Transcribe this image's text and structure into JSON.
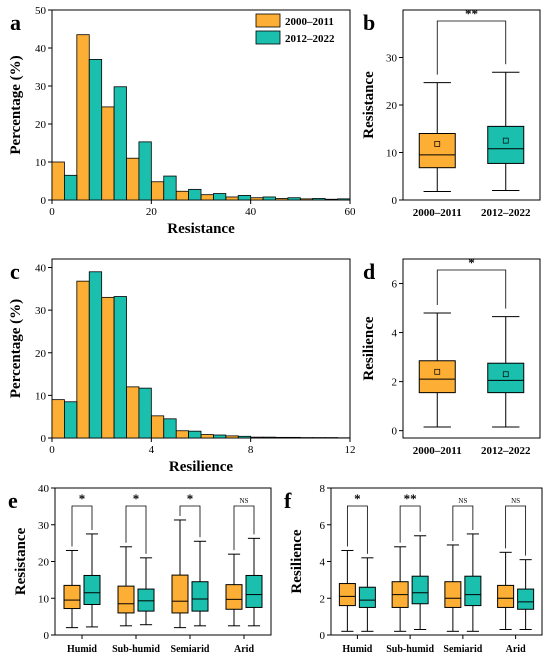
{
  "colors": {
    "p1": "#FDAE34",
    "p2": "#1ABFAE",
    "stroke": "#000000"
  },
  "legend": [
    "2000–2011",
    "2012–2022"
  ],
  "chart_data": [
    {
      "id": "a",
      "type": "bar",
      "panel_label": "a",
      "xlabel": "Resistance",
      "ylabel": "Percentage (%)",
      "xlim": [
        0,
        60
      ],
      "ylim": [
        0,
        50
      ],
      "xticks": [
        0,
        20,
        40,
        60
      ],
      "yticks": [
        0,
        10,
        20,
        30,
        40,
        50
      ],
      "bin_width": 2.5,
      "bins": [
        0,
        5,
        10,
        15,
        20,
        25,
        30,
        35,
        40,
        45,
        50,
        55
      ],
      "series": [
        {
          "name": "2000–2011",
          "values": [
            10,
            43.5,
            24.5,
            11,
            4.8,
            2.3,
            1.4,
            0.8,
            0.6,
            0.4,
            0.3,
            0.2
          ]
        },
        {
          "name": "2012–2022",
          "values": [
            6.5,
            37,
            29.8,
            15.3,
            6.3,
            2.8,
            1.7,
            1.2,
            0.8,
            0.6,
            0.4,
            0.3
          ]
        }
      ],
      "legend_position": "top-right"
    },
    {
      "id": "b",
      "type": "box",
      "panel_label": "b",
      "ylabel": "Resistance",
      "ylim": [
        0,
        40
      ],
      "yticks": [
        0,
        10,
        20,
        30
      ],
      "categories": [
        "2000–2011",
        "2012–2022"
      ],
      "boxes": [
        {
          "whisker_low": 1.8,
          "q1": 6.8,
          "median": 9.5,
          "q3": 14,
          "whisker_high": 24.7,
          "mean": 11.8
        },
        {
          "whisker_low": 2,
          "q1": 7.7,
          "median": 10.8,
          "q3": 15.5,
          "whisker_high": 26.9,
          "mean": 12.5
        }
      ],
      "significance": "**"
    },
    {
      "id": "c",
      "type": "bar",
      "panel_label": "c",
      "xlabel": "Resilience",
      "ylabel": "Percentage (%)",
      "xlim": [
        0,
        12
      ],
      "ylim": [
        0,
        42
      ],
      "xticks": [
        0,
        4,
        8,
        12
      ],
      "yticks": [
        0,
        10,
        20,
        30,
        40
      ],
      "bin_width": 0.5,
      "bins": [
        0,
        1,
        2,
        3,
        4,
        5,
        6,
        7,
        8,
        9,
        10,
        11
      ],
      "series": [
        {
          "name": "2000–2011",
          "values": [
            9,
            36.8,
            33,
            12,
            5.2,
            1.7,
            0.8,
            0.5,
            0.2,
            0.15,
            0.1,
            0.1
          ]
        },
        {
          "name": "2012–2022",
          "values": [
            8.5,
            39,
            33.2,
            11.7,
            4.5,
            1.6,
            0.7,
            0.4,
            0.2,
            0.15,
            0.1,
            0.05
          ]
        }
      ]
    },
    {
      "id": "d",
      "type": "box",
      "panel_label": "d",
      "ylabel": "Resilience",
      "ylim": [
        -0.3,
        7
      ],
      "yticks": [
        0,
        2,
        4,
        6
      ],
      "categories": [
        "2000–2011",
        "2012–2022"
      ],
      "boxes": [
        {
          "whisker_low": 0.15,
          "q1": 1.55,
          "median": 2.1,
          "q3": 2.85,
          "whisker_high": 4.8,
          "mean": 2.4
        },
        {
          "whisker_low": 0.15,
          "q1": 1.55,
          "median": 2.05,
          "q3": 2.75,
          "whisker_high": 4.65,
          "mean": 2.3
        }
      ],
      "significance": "*"
    },
    {
      "id": "e",
      "type": "box",
      "panel_label": "e",
      "ylabel": "Resistance",
      "ylim": [
        0,
        40
      ],
      "yticks": [
        0,
        10,
        20,
        30,
        40
      ],
      "categories": [
        "Humid",
        "Sub-humid",
        "Semiarid",
        "Arid"
      ],
      "boxes": [
        [
          {
            "whisker_low": 2,
            "q1": 7.2,
            "median": 9.5,
            "q3": 13.5,
            "whisker_high": 23
          },
          {
            "whisker_low": 2.2,
            "q1": 8.3,
            "median": 11.5,
            "q3": 16.2,
            "whisker_high": 27.5
          }
        ],
        [
          {
            "whisker_low": 2.5,
            "q1": 6,
            "median": 8.5,
            "q3": 13.3,
            "whisker_high": 24
          },
          {
            "whisker_low": 2.8,
            "q1": 6.5,
            "median": 9.3,
            "q3": 12.5,
            "whisker_high": 21
          }
        ],
        [
          {
            "whisker_low": 2,
            "q1": 6,
            "median": 9.2,
            "q3": 16.3,
            "whisker_high": 31.3
          },
          {
            "whisker_low": 2.5,
            "q1": 6.5,
            "median": 9.8,
            "q3": 14.5,
            "whisker_high": 25.5
          }
        ],
        [
          {
            "whisker_low": 2.5,
            "q1": 7,
            "median": 9.7,
            "q3": 13.7,
            "whisker_high": 22
          },
          {
            "whisker_low": 2.5,
            "q1": 7.5,
            "median": 11,
            "q3": 16.2,
            "whisker_high": 26.3
          }
        ]
      ],
      "significance": [
        "*",
        "*",
        "*",
        "NS"
      ]
    },
    {
      "id": "f",
      "type": "box",
      "panel_label": "f",
      "ylabel": "Resilience",
      "ylim": [
        0,
        8
      ],
      "yticks": [
        0,
        2,
        4,
        6,
        8
      ],
      "categories": [
        "Humid",
        "Sub-humid",
        "Semiarid",
        "Arid"
      ],
      "boxes": [
        [
          {
            "whisker_low": 0.2,
            "q1": 1.6,
            "median": 2.1,
            "q3": 2.8,
            "whisker_high": 4.6
          },
          {
            "whisker_low": 0.2,
            "q1": 1.5,
            "median": 1.9,
            "q3": 2.6,
            "whisker_high": 4.2
          }
        ],
        [
          {
            "whisker_low": 0.2,
            "q1": 1.5,
            "median": 2.2,
            "q3": 2.9,
            "whisker_high": 4.8
          },
          {
            "whisker_low": 0.3,
            "q1": 1.7,
            "median": 2.3,
            "q3": 3.2,
            "whisker_high": 5.4
          }
        ],
        [
          {
            "whisker_low": 0.2,
            "q1": 1.5,
            "median": 2,
            "q3": 2.9,
            "whisker_high": 4.9
          },
          {
            "whisker_low": 0.2,
            "q1": 1.6,
            "median": 2.2,
            "q3": 3.2,
            "whisker_high": 5.5
          }
        ],
        [
          {
            "whisker_low": 0.3,
            "q1": 1.5,
            "median": 2,
            "q3": 2.7,
            "whisker_high": 4.5
          },
          {
            "whisker_low": 0.3,
            "q1": 1.4,
            "median": 1.8,
            "q3": 2.5,
            "whisker_high": 4.1
          }
        ]
      ],
      "significance": [
        "*",
        "**",
        "NS",
        "NS"
      ]
    }
  ]
}
